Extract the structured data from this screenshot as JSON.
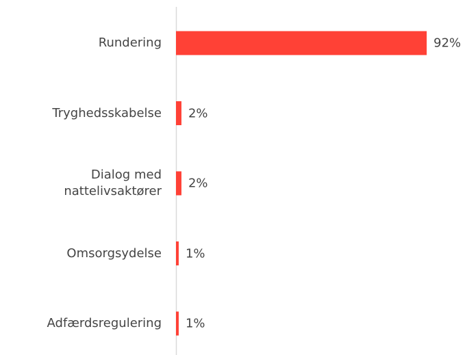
{
  "chart_data": {
    "type": "bar",
    "orientation": "horizontal",
    "categories": [
      "Rundering",
      "Tryghedsskabelse",
      "Dialog med nattelivsaktører",
      "Omsorgsydelse",
      "Adfærdsregulering"
    ],
    "values": [
      92,
      2,
      2,
      1,
      1
    ],
    "value_labels": [
      "92%",
      "2%",
      "2%",
      "1%",
      "1%"
    ],
    "color": "#ff4136",
    "xlim": [
      0,
      100
    ]
  }
}
